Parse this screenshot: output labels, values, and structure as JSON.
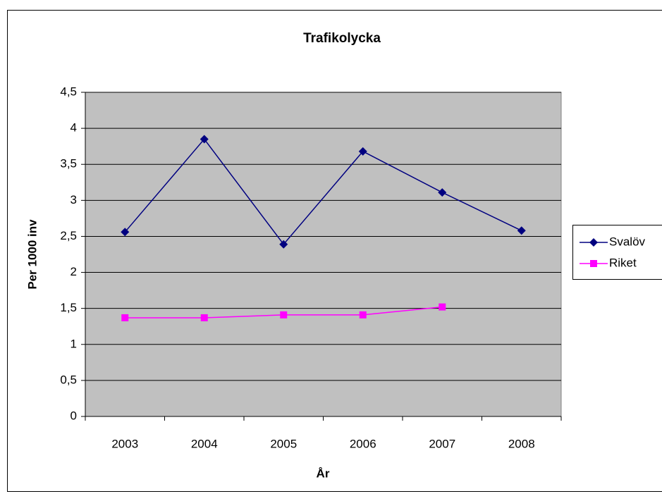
{
  "chart_data": {
    "type": "line",
    "title": "Trafikolycka",
    "x_label": "År",
    "y_label": "Per 1000 inv",
    "categories": [
      "2003",
      "2004",
      "2005",
      "2006",
      "2007",
      "2008"
    ],
    "series": [
      {
        "name": "Svalöv",
        "color": "#000080",
        "marker": "diamond",
        "values": [
          2.56,
          3.85,
          2.39,
          3.68,
          3.11,
          2.58
        ]
      },
      {
        "name": "Riket",
        "color": "#ff00ff",
        "marker": "square",
        "values": [
          1.37,
          1.37,
          1.41,
          1.41,
          1.52,
          null
        ]
      }
    ],
    "ylim": [
      0,
      4.5
    ],
    "yticks": [
      0,
      {
        "value": 0.5,
        "label": "0,5"
      },
      1,
      {
        "value": 1.5,
        "label": "1,5"
      },
      2,
      {
        "value": 2.5,
        "label": "2,5"
      },
      3,
      {
        "value": 3.5,
        "label": "3,5"
      },
      4,
      {
        "value": 4.5,
        "label": "4,5"
      }
    ],
    "grid": true,
    "legend": "right"
  }
}
